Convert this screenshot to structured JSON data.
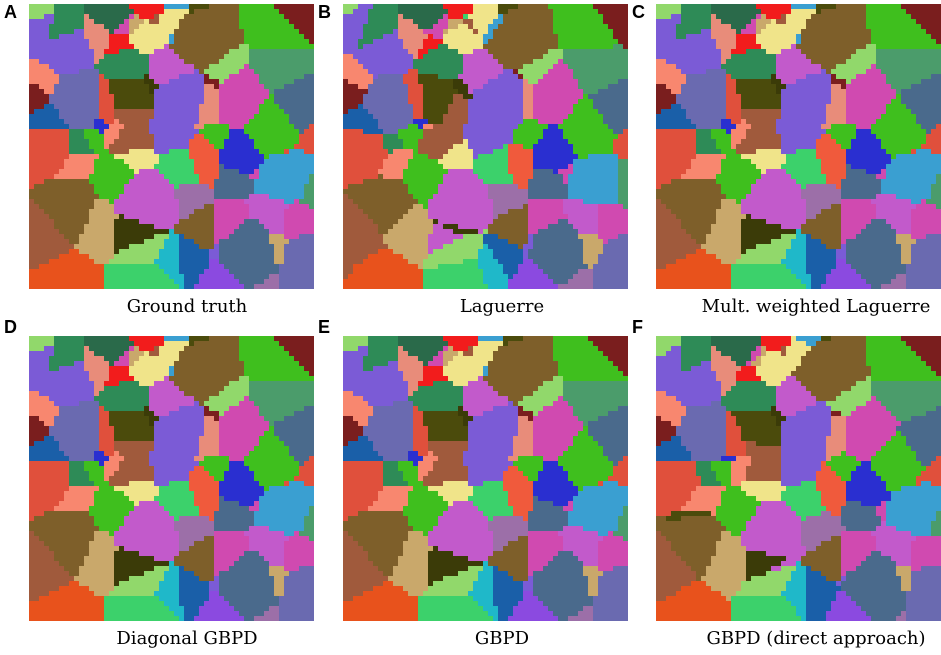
{
  "figure": {
    "panels": [
      {
        "letter": "A",
        "caption": "Ground truth"
      },
      {
        "letter": "B",
        "caption": "Laguerre"
      },
      {
        "letter": "C",
        "caption": "Mult. weighted Laguerre"
      },
      {
        "letter": "D",
        "caption": "Diagonal GBPD"
      },
      {
        "letter": "E",
        "caption": "GBPD"
      },
      {
        "letter": "F",
        "caption": "GBPD (direct approach)"
      }
    ]
  },
  "palette": [
    "#7b5bd6",
    "#f05a3c",
    "#3fbf1e",
    "#1a5fa8",
    "#c9a86b",
    "#4b4b0c",
    "#3cd16b",
    "#e0503c",
    "#9c6fa8",
    "#2e8b57",
    "#e88c7a",
    "#7a1e1e",
    "#3a9fd1",
    "#6a6ab0",
    "#b05ad8",
    "#f8876f",
    "#2a2fd0",
    "#e8521c",
    "#6b8c1e",
    "#2a6a4a",
    "#c25acb",
    "#1fb8c9",
    "#7e5f2a",
    "#91d86b",
    "#f21c1c",
    "#3b3b08",
    "#4b9c6b",
    "#8b4ae0",
    "#f0e48a",
    "#d04ab0",
    "#4a6a8c",
    "#a05a3c"
  ]
}
